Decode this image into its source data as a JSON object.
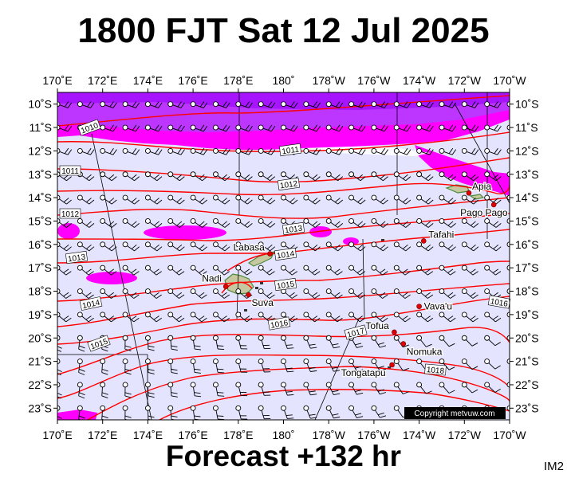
{
  "title": "1800 FJT Sat 12 Jul 2025",
  "subtitle": "Forecast +132 hr",
  "corner_label": "IM2",
  "copyright": "Copyright metvuw.com",
  "colors": {
    "background": "#e4e4ff",
    "rain_light": "#ff00ff",
    "rain_heavy": "#b040ff",
    "isobar": "#ff0000",
    "meridian": "#000000",
    "land": "#c8c8a0"
  },
  "chart_data": {
    "type": "map",
    "projection": "lat-lon",
    "lon_range": [
      170,
      190
    ],
    "lat_range": [
      -23.5,
      -9.5
    ],
    "x_tick_labels": [
      "170˚E",
      "172˚E",
      "174˚E",
      "176˚E",
      "178˚E",
      "180˚",
      "178˚W",
      "176˚W",
      "174˚W",
      "172˚W",
      "170˚W"
    ],
    "y_tick_labels": [
      "10˚S",
      "11˚S",
      "12˚S",
      "13˚S",
      "14˚S",
      "15˚S",
      "16˚S",
      "17˚S",
      "18˚S",
      "19˚S",
      "20˚S",
      "21˚S",
      "22˚S",
      "23˚S"
    ],
    "isobar_labels": [
      "1010",
      "1011",
      "1011",
      "1012",
      "1012",
      "1013",
      "1013",
      "1014",
      "1014",
      "1015",
      "1015",
      "1016",
      "1016",
      "1017",
      "1018"
    ],
    "places": [
      {
        "name": "Apia",
        "lon": 188.2,
        "lat": -13.8
      },
      {
        "name": "Pago Pago",
        "lon": 189.3,
        "lat": -14.3
      },
      {
        "name": "Tafahi",
        "lon": 186.2,
        "lat": -15.85
      },
      {
        "name": "Labasa",
        "lon": 179.4,
        "lat": -16.4
      },
      {
        "name": "Nadi",
        "lon": 177.45,
        "lat": -17.8
      },
      {
        "name": "Suva",
        "lon": 178.45,
        "lat": -18.15
      },
      {
        "name": "Vava'u",
        "lon": 186.0,
        "lat": -18.65
      },
      {
        "name": "Tofua",
        "lon": 184.9,
        "lat": -19.75
      },
      {
        "name": "Nomuka",
        "lon": 185.3,
        "lat": -20.25
      },
      {
        "name": "Tongatapu",
        "lon": 184.8,
        "lat": -21.15
      }
    ],
    "wind_barb_spacing_deg": 1,
    "grid": true
  }
}
